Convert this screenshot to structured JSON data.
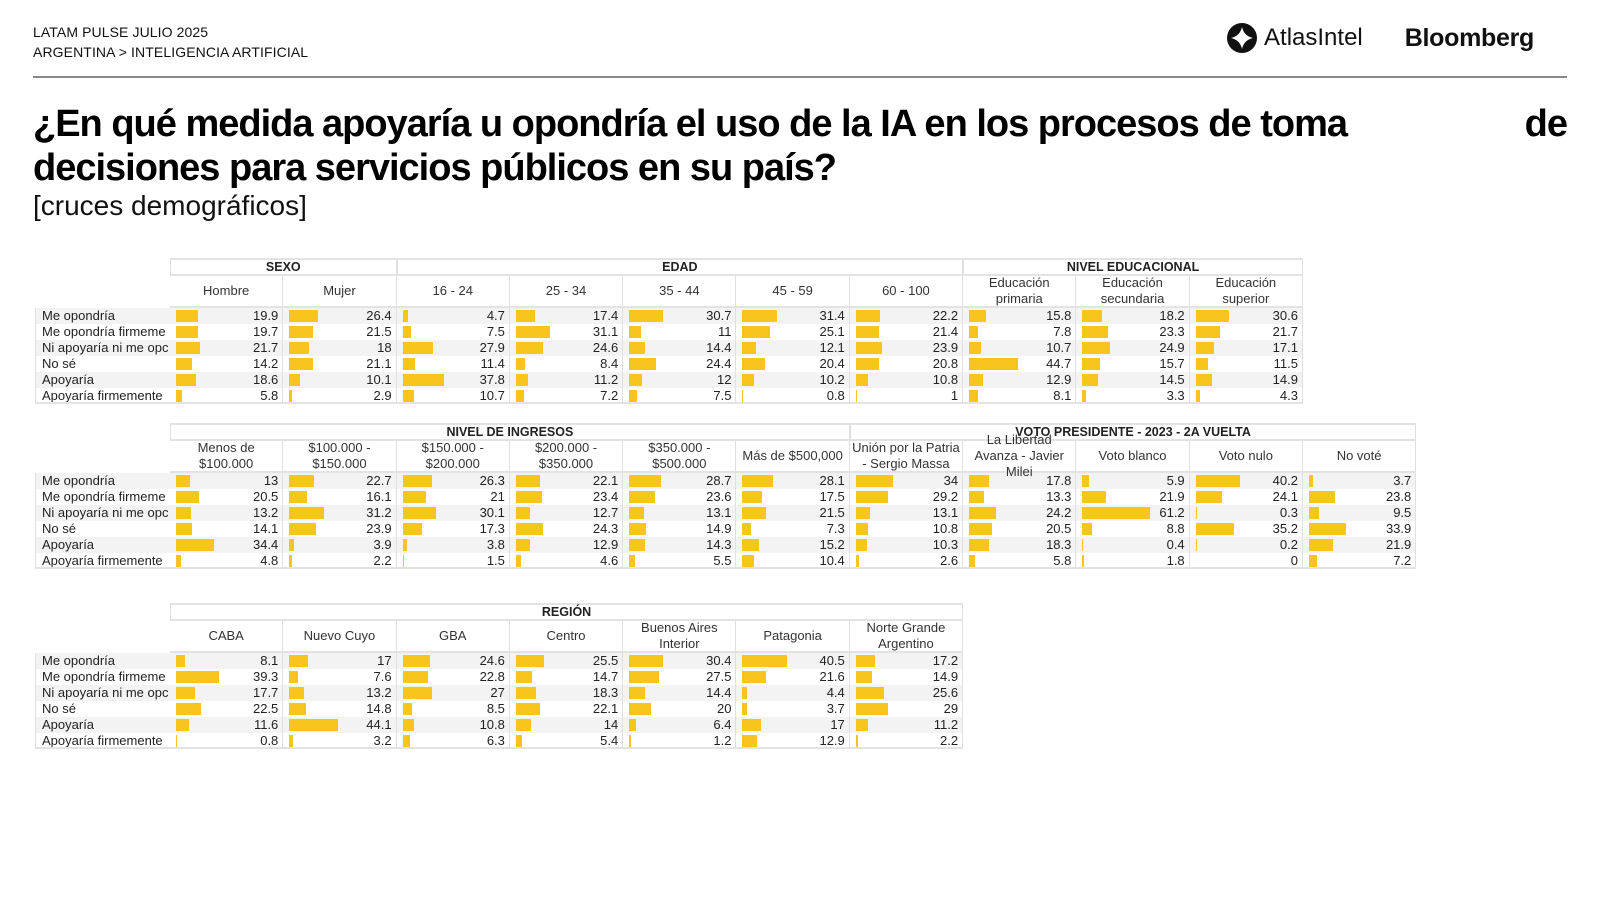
{
  "header": {
    "line1": "LATAM PULSE JULIO 2025",
    "line2": "ARGENTINA > INTELIGENCIA ARTIFICIAL",
    "logo_atlas": "AtlasIntel",
    "logo_bloomberg": "Bloomberg"
  },
  "title": {
    "line1_main": "¿En qué medida apoyaría u opondría el uso de la IA en los procesos de toma",
    "line1_tail": "de",
    "line2": "decisiones para servicios públicos en su país?",
    "subtitle": "[cruces demográficos]"
  },
  "colors": {
    "bar": "#f7c51b",
    "stripe": "#f3f3f3"
  },
  "chart_data": [
    {
      "type": "table",
      "title": "SEXO / EDAD / NIVEL EDUCACIONAL",
      "row_labels": [
        "Me opondría",
        "Me opondría firmeme",
        "Ni apoyaría ni me opc",
        "No sé",
        "Apoyaría",
        "Apoyaría firmemente"
      ],
      "groups": [
        {
          "name": "SEXO",
          "columns": [
            {
              "name": "Hombre",
              "values": [
                19.9,
                19.7,
                21.7,
                14.2,
                18.6,
                5.8
              ]
            },
            {
              "name": "Mujer",
              "values": [
                26.4,
                21.5,
                18,
                21.1,
                10.1,
                2.9
              ]
            }
          ]
        },
        {
          "name": "EDAD",
          "columns": [
            {
              "name": "16 - 24",
              "values": [
                4.7,
                7.5,
                27.9,
                11.4,
                37.8,
                10.7
              ]
            },
            {
              "name": "25 - 34",
              "values": [
                17.4,
                31.1,
                24.6,
                8.4,
                11.2,
                7.2
              ]
            },
            {
              "name": "35 - 44",
              "values": [
                30.7,
                11,
                14.4,
                24.4,
                12,
                7.5
              ]
            },
            {
              "name": "45 - 59",
              "values": [
                31.4,
                25.1,
                12.1,
                20.4,
                10.2,
                0.8
              ]
            },
            {
              "name": "60 - 100",
              "values": [
                22.2,
                21.4,
                23.9,
                20.8,
                10.8,
                1
              ]
            }
          ]
        },
        {
          "name": "NIVEL EDUCACIONAL",
          "columns": [
            {
              "name": "Educación primaria",
              "values": [
                15.8,
                7.8,
                10.7,
                44.7,
                12.9,
                8.1
              ]
            },
            {
              "name": "Educación secundaria",
              "values": [
                18.2,
                23.3,
                24.9,
                15.7,
                14.5,
                3.3
              ]
            },
            {
              "name": "Educación superior",
              "values": [
                30.6,
                21.7,
                17.1,
                11.5,
                14.9,
                4.3
              ]
            }
          ]
        }
      ]
    },
    {
      "type": "table",
      "title": "NIVEL DE INGRESOS / VOTO PRESIDENTE - 2023 - 2A VUELTA",
      "row_labels": [
        "Me opondría",
        "Me opondría firmeme",
        "Ni apoyaría ni me opc",
        "No sé",
        "Apoyaría",
        "Apoyaría firmemente"
      ],
      "groups": [
        {
          "name": "NIVEL DE INGRESOS",
          "columns": [
            {
              "name": "Menos de $100.000",
              "values": [
                13,
                20.5,
                13.2,
                14.1,
                34.4,
                4.8
              ]
            },
            {
              "name": "$100.000 - $150.000",
              "values": [
                22.7,
                16.1,
                31.2,
                23.9,
                3.9,
                2.2
              ]
            },
            {
              "name": "$150.000 - $200.000",
              "values": [
                26.3,
                21,
                30.1,
                17.3,
                3.8,
                1.5
              ]
            },
            {
              "name": "$200.000 - $350.000",
              "values": [
                22.1,
                23.4,
                12.7,
                24.3,
                12.9,
                4.6
              ]
            },
            {
              "name": "$350.000 - $500.000",
              "values": [
                28.7,
                23.6,
                13.1,
                14.9,
                14.3,
                5.5
              ]
            },
            {
              "name": "Más de $500,000",
              "values": [
                28.1,
                17.5,
                21.5,
                7.3,
                15.2,
                10.4
              ]
            }
          ]
        },
        {
          "name": "VOTO PRESIDENTE - 2023 - 2A VUELTA",
          "columns": [
            {
              "name": "Unión por la Patria - Sergio Massa",
              "values": [
                34,
                29.2,
                13.1,
                10.8,
                10.3,
                2.6
              ]
            },
            {
              "name": "La Libertad Avanza - Javier Milei",
              "values": [
                17.8,
                13.3,
                24.2,
                20.5,
                18.3,
                5.8
              ]
            },
            {
              "name": "Voto blanco",
              "values": [
                5.9,
                21.9,
                61.2,
                8.8,
                0.4,
                1.8
              ]
            },
            {
              "name": "Voto nulo",
              "values": [
                40.2,
                24.1,
                0.3,
                35.2,
                0.2,
                0
              ]
            },
            {
              "name": "No voté",
              "values": [
                3.7,
                23.8,
                9.5,
                33.9,
                21.9,
                7.2
              ]
            }
          ]
        }
      ]
    },
    {
      "type": "table",
      "title": "REGIÓN",
      "row_labels": [
        "Me opondría",
        "Me opondría firmeme",
        "Ni apoyaría ni me opc",
        "No sé",
        "Apoyaría",
        "Apoyaría firmemente"
      ],
      "groups": [
        {
          "name": "REGIÓN",
          "columns": [
            {
              "name": "CABA",
              "values": [
                8.1,
                39.3,
                17.7,
                22.5,
                11.6,
                0.8
              ]
            },
            {
              "name": "Nuevo Cuyo",
              "values": [
                17,
                7.6,
                13.2,
                14.8,
                44.1,
                3.2
              ]
            },
            {
              "name": "GBA",
              "values": [
                24.6,
                22.8,
                27,
                8.5,
                10.8,
                6.3
              ]
            },
            {
              "name": "Centro",
              "values": [
                25.5,
                14.7,
                18.3,
                22.1,
                14,
                5.4
              ]
            },
            {
              "name": "Buenos Aires Interior",
              "values": [
                30.4,
                27.5,
                14.4,
                20,
                6.4,
                1.2
              ]
            },
            {
              "name": "Patagonia",
              "values": [
                40.5,
                21.6,
                4.4,
                3.7,
                17,
                12.9
              ]
            },
            {
              "name": "Norte Grande Argentino",
              "values": [
                17.2,
                14.9,
                25.6,
                29,
                11.2,
                2.2
              ]
            }
          ]
        }
      ]
    }
  ]
}
